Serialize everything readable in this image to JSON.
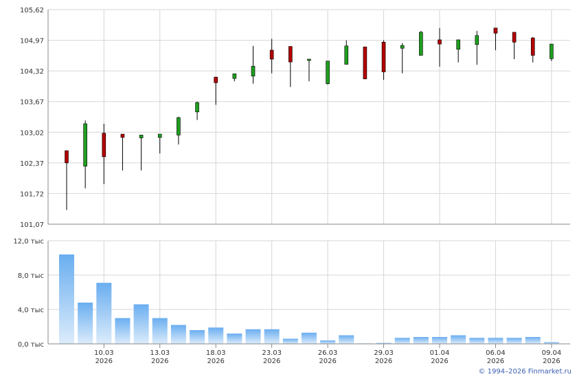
{
  "copyright": "© 1994–2026 Finmarket.ru",
  "colors": {
    "up_candle": "#1f9e1f",
    "down_candle": "#b30000",
    "volume_top": "#6aaef0",
    "volume_bottom": "#dcecfb",
    "grid": "#d6d6d6",
    "axis": "#888888"
  },
  "chart_data": [
    {
      "type": "candlestick",
      "ylim": [
        101.07,
        105.62
      ],
      "y_ticks": [
        "105,62",
        "104,97",
        "104,32",
        "103,67",
        "103,02",
        "102,37",
        "101,72",
        "101,07"
      ],
      "grid": true,
      "candles": [
        {
          "open": 102.63,
          "close": 102.37,
          "high": 102.63,
          "low": 101.37
        },
        {
          "open": 102.3,
          "close": 103.2,
          "high": 103.27,
          "low": 101.83
        },
        {
          "open": 103.0,
          "close": 102.5,
          "high": 103.2,
          "low": 101.92
        },
        {
          "open": 102.98,
          "close": 102.91,
          "high": 102.98,
          "low": 102.21
        },
        {
          "open": 102.9,
          "close": 102.96,
          "high": 102.96,
          "low": 102.21
        },
        {
          "open": 102.91,
          "close": 102.98,
          "high": 102.98,
          "low": 102.57
        },
        {
          "open": 102.96,
          "close": 103.33,
          "high": 103.35,
          "low": 102.76
        },
        {
          "open": 103.45,
          "close": 103.65,
          "high": 103.67,
          "low": 103.28
        },
        {
          "open": 104.19,
          "close": 104.07,
          "high": 104.19,
          "low": 103.6
        },
        {
          "open": 104.16,
          "close": 104.26,
          "high": 104.26,
          "low": 104.1
        },
        {
          "open": 104.21,
          "close": 104.42,
          "high": 104.85,
          "low": 104.05
        },
        {
          "open": 104.76,
          "close": 104.57,
          "high": 105.0,
          "low": 104.27
        },
        {
          "open": 104.84,
          "close": 104.51,
          "high": 104.84,
          "low": 103.98
        },
        {
          "open": 104.55,
          "close": 104.57,
          "high": 104.57,
          "low": 104.1
        },
        {
          "open": 104.05,
          "close": 104.53,
          "high": 104.53,
          "low": 104.03
        },
        {
          "open": 104.46,
          "close": 104.85,
          "high": 104.97,
          "low": 104.46
        },
        {
          "open": 104.83,
          "close": 104.15,
          "high": 104.83,
          "low": 104.15
        },
        {
          "open": 104.93,
          "close": 104.3,
          "high": 104.97,
          "low": 104.13
        },
        {
          "open": 104.8,
          "close": 104.86,
          "high": 104.91,
          "low": 104.27
        },
        {
          "open": 104.65,
          "close": 105.14,
          "high": 105.17,
          "low": 104.65
        },
        {
          "open": 104.98,
          "close": 104.89,
          "high": 105.23,
          "low": 104.41
        },
        {
          "open": 104.78,
          "close": 104.98,
          "high": 104.98,
          "low": 104.5
        },
        {
          "open": 104.88,
          "close": 105.07,
          "high": 105.17,
          "low": 104.45
        },
        {
          "open": 105.23,
          "close": 105.12,
          "high": 105.23,
          "low": 104.76
        },
        {
          "open": 105.14,
          "close": 104.93,
          "high": 105.14,
          "low": 104.57
        },
        {
          "open": 105.02,
          "close": 104.65,
          "high": 105.04,
          "low": 104.5
        },
        {
          "open": 104.58,
          "close": 104.89,
          "high": 104.89,
          "low": 104.53
        }
      ]
    },
    {
      "type": "bar",
      "ylim": [
        0,
        12.0
      ],
      "y_ticks": [
        "12,0 тыс",
        "8,0 тыс",
        "4,0 тыс",
        "0,0 тыс"
      ],
      "unit": "тыс",
      "values": [
        10.4,
        4.8,
        7.1,
        3.0,
        4.6,
        3.0,
        2.2,
        1.6,
        1.9,
        1.2,
        1.7,
        1.7,
        0.6,
        1.3,
        0.4,
        1.0,
        0.05,
        0.1,
        0.7,
        0.8,
        0.8,
        1.0,
        0.7,
        0.7,
        0.7,
        0.8,
        0.2
      ]
    }
  ],
  "x_axis": {
    "ticks": [
      {
        "index": 2,
        "date": "10.03",
        "year": "2026"
      },
      {
        "index": 5,
        "date": "13.03",
        "year": "2026"
      },
      {
        "index": 8,
        "date": "18.03",
        "year": "2026"
      },
      {
        "index": 11,
        "date": "23.03",
        "year": "2026"
      },
      {
        "index": 14,
        "date": "26.03",
        "year": "2026"
      },
      {
        "index": 17,
        "date": "29.03",
        "year": "2026"
      },
      {
        "index": 20,
        "date": "01.04",
        "year": "2026"
      },
      {
        "index": 23,
        "date": "06.04",
        "year": "2026"
      },
      {
        "index": 26,
        "date": "09.04",
        "year": "2026"
      }
    ]
  }
}
